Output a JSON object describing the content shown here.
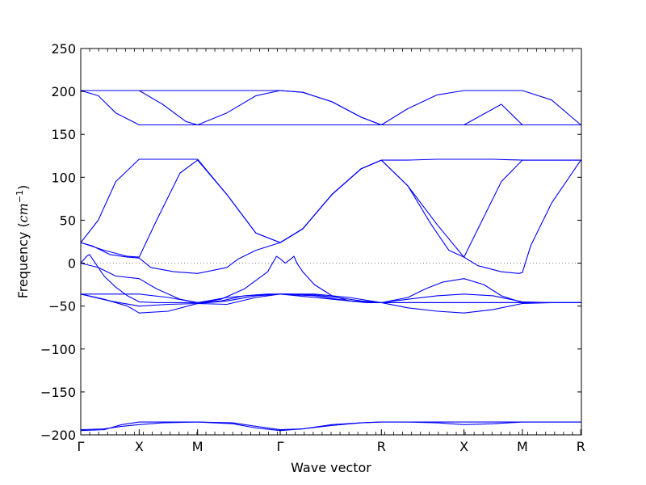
{
  "chart_data": {
    "type": "line",
    "title": "",
    "xlabel": "Wave vector",
    "ylabel_prefix": "Frequency (",
    "ylabel_unit_base": "cm",
    "ylabel_unit_exp": "−1",
    "ylabel_suffix": ")",
    "ylim": [
      -200,
      250
    ],
    "xlim": [
      0,
      8.57
    ],
    "yticks": [
      -200,
      -150,
      -100,
      -50,
      0,
      50,
      100,
      150,
      200,
      250
    ],
    "ytick_labels": [
      "−200",
      "−150",
      "−100",
      "−50",
      "0",
      "50",
      "100",
      "150",
      "200",
      "250"
    ],
    "xticks": [
      {
        "x": 0,
        "label": "Γ"
      },
      {
        "x": 1.0,
        "label": "X"
      },
      {
        "x": 2.0,
        "label": "M"
      },
      {
        "x": 3.414,
        "label": "Γ"
      },
      {
        "x": 5.146,
        "label": "R"
      },
      {
        "x": 6.56,
        "label": "X"
      },
      {
        "x": 7.56,
        "label": "M"
      },
      {
        "x": 8.56,
        "label": "R"
      }
    ],
    "grid": false,
    "zero_line": {
      "y": 0,
      "style": "dotted",
      "color": "#808080"
    },
    "line_color": "#0000ff",
    "series": [
      {
        "x": [
          0.0,
          0.5,
          1.0,
          1.5,
          2.0,
          2.5,
          3.0,
          3.414,
          3.8,
          4.3,
          4.8,
          5.146,
          5.6,
          6.1,
          6.56,
          7.06,
          7.56,
          8.06,
          8.56
        ],
        "values": [
          201,
          201,
          201,
          201,
          201,
          201,
          201,
          201,
          199,
          188,
          170,
          161,
          180,
          196,
          201,
          201,
          201,
          190,
          161
        ]
      },
      {
        "x": [
          0.0,
          0.3,
          0.6,
          1.0,
          1.3,
          1.6,
          2.0,
          2.5,
          3.0,
          3.414,
          3.8,
          4.3,
          4.8,
          5.146,
          5.6,
          6.1,
          6.56,
          6.8,
          7.2,
          7.56,
          8.06,
          8.56
        ],
        "values": [
          201,
          195,
          175,
          161,
          161,
          161,
          161,
          161,
          161,
          161,
          161,
          161,
          161,
          161,
          161,
          161,
          161,
          170,
          185,
          161,
          161,
          161
        ]
      },
      {
        "x": [
          0.0,
          0.5,
          1.0,
          1.4,
          1.8,
          2.0,
          2.5,
          3.0,
          3.414,
          3.8,
          4.3,
          4.8,
          5.146,
          5.6,
          6.1,
          6.56,
          7.06,
          7.56,
          8.06,
          8.56
        ],
        "values": [
          201,
          201,
          201,
          185,
          165,
          161,
          175,
          195,
          201,
          199,
          188,
          170,
          161,
          161,
          161,
          161,
          161,
          161,
          161,
          161
        ]
      },
      {
        "x": [
          0.0,
          0.3,
          0.6,
          1.0,
          1.4,
          1.8,
          2.0,
          2.5,
          3.0,
          3.414,
          3.8,
          4.3,
          4.8,
          5.146,
          5.6,
          6.1,
          6.56,
          7.06,
          7.56,
          8.06,
          8.56
        ],
        "values": [
          24,
          50,
          95,
          121,
          121,
          121,
          121,
          80,
          35,
          24,
          40,
          80,
          110,
          120,
          120,
          121,
          121,
          121,
          120,
          120,
          120
        ]
      },
      {
        "x": [
          0.0,
          0.4,
          0.8,
          1.0,
          1.3,
          1.7,
          2.0,
          2.5,
          3.0,
          3.414,
          3.8,
          4.3,
          4.8,
          5.146,
          5.6,
          6.0,
          6.3,
          6.56,
          6.8,
          7.2,
          7.56,
          8.06,
          8.56
        ],
        "values": [
          24,
          15,
          8,
          7,
          50,
          105,
          120,
          80,
          35,
          24,
          40,
          80,
          110,
          120,
          90,
          45,
          15,
          7,
          40,
          95,
          120,
          120,
          120
        ]
      },
      {
        "x": [
          0.0,
          0.2,
          0.5,
          0.8,
          1.0,
          1.2,
          1.6,
          2.0,
          2.5,
          2.7,
          3.0,
          3.414,
          3.8,
          4.3,
          4.8,
          5.146,
          5.6,
          6.1,
          6.56,
          6.8,
          7.2,
          7.5,
          7.56,
          7.7,
          8.06,
          8.56
        ],
        "values": [
          24,
          20,
          10,
          7,
          6,
          -5,
          -10,
          -12,
          -5,
          5,
          15,
          24,
          40,
          80,
          110,
          120,
          90,
          45,
          7,
          -3,
          -10,
          -12,
          -11,
          20,
          70,
          120
        ]
      },
      {
        "x": [
          0.0,
          0.1,
          0.15,
          0.25,
          0.4,
          0.6,
          0.8,
          1.0,
          1.3,
          1.7,
          2.0,
          2.4,
          2.8,
          3.2,
          3.35,
          3.414,
          3.5,
          3.6,
          3.65,
          3.7,
          3.8,
          4.0,
          4.3,
          4.6,
          4.9,
          5.146,
          5.6,
          6.1,
          6.56,
          7.06,
          7.56,
          8.06,
          8.56
        ],
        "values": [
          0,
          8,
          10,
          0,
          -15,
          -28,
          -38,
          -45,
          -46,
          -46,
          -46,
          -42,
          -30,
          -10,
          8,
          5,
          0,
          5,
          8,
          0,
          -10,
          -25,
          -38,
          -44,
          -46,
          -46,
          -46,
          -46,
          -46,
          -46,
          -46,
          -46,
          -46
        ]
      },
      {
        "x": [
          0.0,
          0.3,
          0.6,
          1.0,
          1.3,
          1.7,
          2.0,
          2.4,
          2.8,
          3.2,
          3.414,
          3.6,
          4.0,
          4.4,
          4.8,
          5.146,
          5.6,
          5.9,
          6.2,
          6.56,
          6.9,
          7.2,
          7.56,
          8.06,
          8.56
        ],
        "values": [
          0,
          -5,
          -15,
          -18,
          -30,
          -42,
          -46,
          -44,
          -38,
          -36,
          -36,
          -36,
          -37,
          -40,
          -44,
          -46,
          -40,
          -30,
          -22,
          -18,
          -25,
          -38,
          -46,
          -46,
          -46
        ]
      },
      {
        "x": [
          0.0,
          0.4,
          0.8,
          1.0,
          1.5,
          2.0,
          2.5,
          3.0,
          3.414,
          4.0,
          4.6,
          5.146,
          5.6,
          6.1,
          6.56,
          7.06,
          7.56,
          8.06,
          8.56
        ],
        "values": [
          -36,
          -36,
          -36,
          -36,
          -40,
          -46,
          -40,
          -37,
          -36,
          -36,
          -40,
          -46,
          -42,
          -38,
          -36,
          -38,
          -45,
          -46,
          -46
        ]
      },
      {
        "x": [
          0.0,
          0.4,
          0.8,
          1.0,
          1.5,
          2.0,
          2.5,
          3.0,
          3.414,
          4.0,
          4.6,
          5.146,
          5.6,
          6.1,
          6.56,
          7.06,
          7.56,
          8.06,
          8.56
        ],
        "values": [
          -36,
          -42,
          -50,
          -58,
          -56,
          -47,
          -44,
          -38,
          -36,
          -40,
          -44,
          -46,
          -52,
          -56,
          -58,
          -54,
          -47,
          -46,
          -46
        ]
      },
      {
        "x": [
          0.0,
          0.5,
          1.0,
          1.5,
          2.0,
          2.5,
          3.0,
          3.414,
          4.0,
          4.6,
          5.146,
          5.6,
          6.1,
          6.56,
          7.06,
          7.56,
          8.06,
          8.56
        ],
        "values": [
          -36,
          -44,
          -50,
          -48,
          -47,
          -48,
          -40,
          -36,
          -38,
          -44,
          -46,
          -46,
          -46,
          -46,
          -46,
          -46,
          -46,
          -46
        ]
      },
      {
        "x": [
          0.0,
          0.4,
          0.7,
          1.0,
          1.4,
          2.0,
          2.6,
          3.0,
          3.414,
          3.8,
          4.3,
          4.8,
          5.146,
          5.6,
          6.1,
          6.56,
          7.06,
          7.56,
          8.06,
          8.56
        ],
        "values": [
          -194,
          -193,
          -190,
          -188,
          -186,
          -185,
          -186,
          -190,
          -194,
          -193,
          -189,
          -186,
          -185,
          -185,
          -185,
          -185,
          -185,
          -185,
          -185,
          -185
        ]
      },
      {
        "x": [
          0.0,
          0.4,
          0.7,
          1.0,
          1.4,
          2.0,
          2.6,
          3.0,
          3.414,
          3.8,
          4.3,
          4.8,
          5.146,
          5.6,
          6.1,
          6.56,
          7.06,
          7.56,
          8.06,
          8.56
        ],
        "values": [
          -195,
          -194,
          -188,
          -185,
          -185,
          -185,
          -187,
          -192,
          -195,
          -193,
          -188,
          -186,
          -185,
          -185,
          -186,
          -188,
          -187,
          -185,
          -185,
          -185
        ]
      }
    ]
  }
}
